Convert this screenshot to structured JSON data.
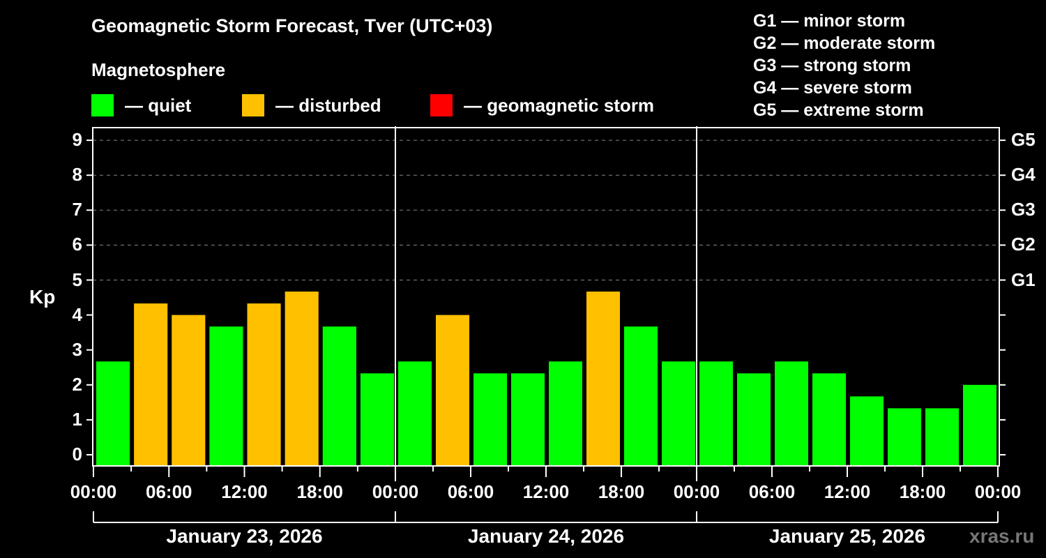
{
  "header": {
    "title": "Geomagnetic Storm Forecast, Tver (UTC+03)",
    "subtitle": "Magnetosphere"
  },
  "legend": {
    "items": [
      {
        "label": "— quiet",
        "color": "#00ff00"
      },
      {
        "label": "— disturbed",
        "color": "#ffc000"
      },
      {
        "label": "— geomagnetic storm",
        "color": "#ff0000"
      }
    ]
  },
  "g_scale_legend": [
    "G1 — minor storm",
    "G2 — moderate storm",
    "G3 — strong storm",
    "G4 — severe storm",
    "G5 — extreme storm"
  ],
  "axes": {
    "ylabel": "Kp",
    "yticks": [
      "0",
      "1",
      "2",
      "3",
      "4",
      "5",
      "6",
      "7",
      "8",
      "9"
    ],
    "right_ticks": [
      "G1",
      "G2",
      "G3",
      "G4",
      "G5"
    ],
    "xticks": [
      "00:00",
      "06:00",
      "12:00",
      "18:00",
      "00:00",
      "06:00",
      "12:00",
      "18:00",
      "00:00",
      "06:00",
      "12:00",
      "18:00",
      "00:00"
    ],
    "dates": [
      "January 23, 2026",
      "January 24, 2026",
      "January 25, 2026"
    ]
  },
  "watermark": "xras.ru",
  "chart_data": {
    "type": "bar",
    "title": "Geomagnetic Storm Forecast, Tver (UTC+03)",
    "subtitle": "Magnetosphere",
    "xlabel": "",
    "ylabel": "Kp",
    "ylim": [
      0,
      9
    ],
    "grid": "dashed horizontal at Kp 5-9",
    "legend_position": "top",
    "categories": [
      "Jan 23 00:00",
      "Jan 23 03:00",
      "Jan 23 06:00",
      "Jan 23 09:00",
      "Jan 23 12:00",
      "Jan 23 15:00",
      "Jan 23 18:00",
      "Jan 23 21:00",
      "Jan 24 00:00",
      "Jan 24 03:00",
      "Jan 24 06:00",
      "Jan 24 09:00",
      "Jan 24 12:00",
      "Jan 24 15:00",
      "Jan 24 18:00",
      "Jan 24 21:00",
      "Jan 25 00:00",
      "Jan 25 03:00",
      "Jan 25 06:00",
      "Jan 25 09:00",
      "Jan 25 12:00",
      "Jan 25 15:00",
      "Jan 25 18:00",
      "Jan 25 21:00"
    ],
    "values": [
      2.67,
      4.33,
      4.0,
      3.67,
      4.33,
      4.67,
      3.67,
      2.33,
      2.67,
      4.0,
      2.33,
      2.33,
      2.67,
      4.67,
      3.67,
      2.67,
      2.67,
      2.33,
      2.67,
      2.33,
      1.67,
      1.33,
      1.33,
      2.0
    ],
    "status": [
      "quiet",
      "disturbed",
      "disturbed",
      "quiet",
      "disturbed",
      "disturbed",
      "quiet",
      "quiet",
      "quiet",
      "disturbed",
      "quiet",
      "quiet",
      "quiet",
      "disturbed",
      "quiet",
      "quiet",
      "quiet",
      "quiet",
      "quiet",
      "quiet",
      "quiet",
      "quiet",
      "quiet",
      "quiet"
    ],
    "colors": {
      "quiet": "#00ff00",
      "disturbed": "#ffc000",
      "storm": "#ff0000"
    },
    "g_levels": {
      "G1": 5,
      "G2": 6,
      "G3": 7,
      "G4": 8,
      "G5": 9
    }
  }
}
